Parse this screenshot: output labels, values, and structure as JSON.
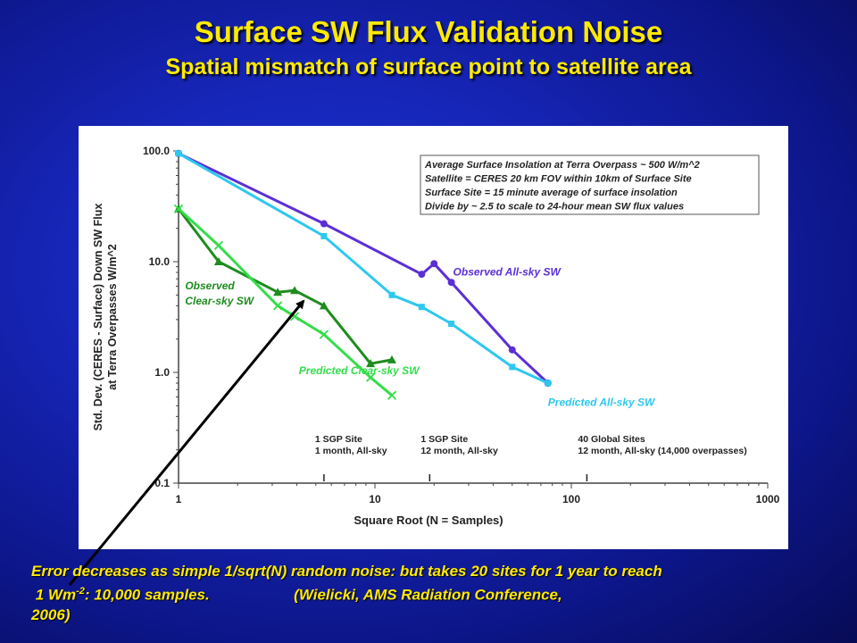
{
  "slide": {
    "title": "Surface SW Flux Validation Noise",
    "subtitle": "Spatial mismatch of surface point to satellite area",
    "caption_line1": "Error decreases as simple 1/sqrt(N) random noise: but takes 20 sites for 1 year to reach",
    "caption_l2_pre": " 1 Wm",
    "caption_l2_sup": "-2",
    "caption_l2_post": ": 10,000 samples.                    (Wielicki, AMS Radiation Conference,",
    "caption_line3": "2006)"
  },
  "chart_data": {
    "type": "line",
    "xscale": "log",
    "yscale": "log",
    "xlim": [
      1,
      1000
    ],
    "ylim": [
      0.1,
      100
    ],
    "xlabel": "Square Root (N = Samples)",
    "ylabel": "Std. Dev. (CERES - Surface) Down SW Flux at Terra Overpasses W/m^2",
    "ylabel_line1": "Std. Dev. (CERES - Surface) Down SW Flux",
    "ylabel_line2": "at Terra Overpasses W/m^2",
    "xticks": [
      {
        "value": 1,
        "label": "1"
      },
      {
        "value": 10,
        "label": "10"
      },
      {
        "value": 100,
        "label": "100"
      },
      {
        "value": 1000,
        "label": "1000"
      }
    ],
    "yticks": [
      {
        "value": 100,
        "label": "100.0"
      },
      {
        "value": 10,
        "label": "10.0"
      },
      {
        "value": 1,
        "label": "1.0"
      },
      {
        "value": 0.1,
        "label": "0.1"
      }
    ],
    "series": [
      {
        "name": "Observed All-sky SW",
        "color": "#5b2fd6",
        "marker": "circle",
        "points": [
          [
            1,
            95
          ],
          [
            5.5,
            22
          ],
          [
            17.3,
            7.7
          ],
          [
            20,
            9.6
          ],
          [
            24.5,
            6.5
          ],
          [
            50,
            1.6
          ],
          [
            76,
            0.8
          ]
        ]
      },
      {
        "name": "Predicted All-sky SW",
        "color": "#2ec8ee",
        "marker": "square",
        "points": [
          [
            1,
            95
          ],
          [
            5.5,
            17
          ],
          [
            12.2,
            5
          ],
          [
            17.3,
            3.9
          ],
          [
            24.5,
            2.75
          ],
          [
            50,
            1.12
          ],
          [
            76,
            0.8
          ]
        ]
      },
      {
        "name": "Observed Clear-sky SW",
        "color": "#1e8c1e",
        "marker": "triangle",
        "points": [
          [
            1,
            30
          ],
          [
            1.6,
            10
          ],
          [
            3.2,
            5.3
          ],
          [
            3.9,
            5.5
          ],
          [
            5.5,
            4
          ],
          [
            9.5,
            1.2
          ],
          [
            12.2,
            1.3
          ]
        ]
      },
      {
        "name": "Predicted Clear-sky SW",
        "color": "#33dd4a",
        "marker": "x",
        "points": [
          [
            1,
            30
          ],
          [
            1.6,
            14
          ],
          [
            3.2,
            4
          ],
          [
            3.9,
            3.2
          ],
          [
            5.5,
            2.2
          ],
          [
            9.5,
            0.9
          ],
          [
            12.2,
            0.62
          ]
        ]
      }
    ],
    "series_labels": [
      {
        "series": "Observed All-sky SW",
        "text": "Observed All-sky SW",
        "x": 25,
        "y": 7.5
      },
      {
        "series": "Predicted All-sky SW",
        "text": "Predicted All-sky SW",
        "x": 76,
        "y": 0.5
      },
      {
        "series": "Observed Clear-sky SW",
        "text": "Observed",
        "text2": "Clear-sky SW",
        "x": 1.08,
        "y": 5.6
      },
      {
        "series": "Predicted Clear-sky SW",
        "text": "Predicted Clear-sky SW",
        "x": 4.1,
        "y": 0.96
      }
    ],
    "annotation_box": [
      "Average Surface Insolation at Terra Overpass ~ 500 W/m^2",
      "Satellite = CERES 20 km FOV within 10km of Surface Site",
      "Surface Site = 15 minute average of surface insolation",
      "Divide by ~ 2.5 to scale to 24-hour mean SW flux values"
    ],
    "markers": [
      {
        "x": 5.5,
        "line1": "1 SGP Site",
        "line2": "1 month, All-sky"
      },
      {
        "x": 19,
        "line1": "1 SGP Site",
        "line2": "12 month, All-sky"
      },
      {
        "x": 120,
        "line1": "40 Global Sites",
        "line2": "12 month, All-sky (14,000 overpasses)"
      }
    ],
    "grid": false,
    "legend": "none"
  }
}
